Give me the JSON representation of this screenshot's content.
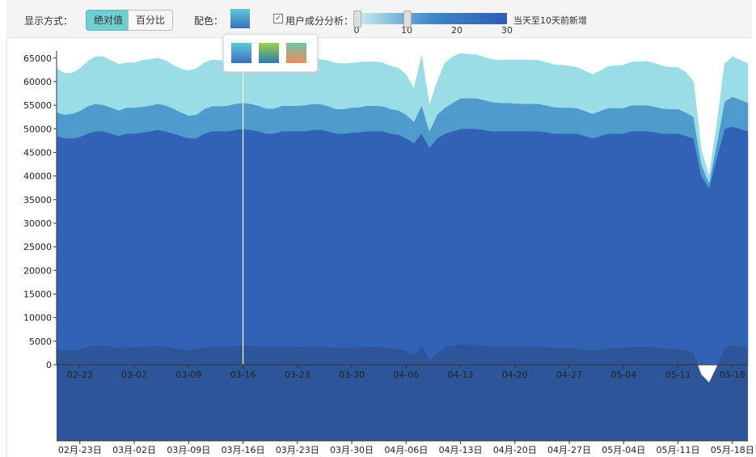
{
  "toolbar": {
    "display_label": "显示方式：",
    "buttons": [
      "绝对值",
      "百分比"
    ],
    "color_label": "配色：",
    "analysis_label": "用户成分分析："
  },
  "slider": {
    "ticks": [
      0,
      10,
      20,
      30
    ],
    "range": [
      0,
      10
    ],
    "label": "当天至10天前新增"
  },
  "chart_data": {
    "type": "stacked-area",
    "categories": [
      null,
      null,
      null,
      "02-23",
      null,
      null,
      null,
      null,
      null,
      null,
      "03-02",
      null,
      null,
      null,
      null,
      null,
      null,
      "03-09",
      null,
      null,
      null,
      null,
      null,
      null,
      "03-16",
      null,
      null,
      null,
      null,
      null,
      null,
      "03-23",
      null,
      null,
      null,
      null,
      null,
      null,
      "03-30",
      null,
      null,
      null,
      null,
      null,
      null,
      "04-06",
      null,
      null,
      null,
      null,
      null,
      null,
      "04-13",
      null,
      null,
      null,
      null,
      null,
      null,
      "04-20",
      null,
      null,
      null,
      null,
      null,
      null,
      "04-27",
      null,
      null,
      null,
      null,
      null,
      null,
      "05-04",
      null,
      null,
      null,
      null,
      null,
      null,
      "05-11",
      null,
      null,
      null,
      null,
      null,
      null,
      "05-18",
      null,
      null
    ],
    "navigator_labels": [
      null,
      null,
      null,
      "02月-23日",
      null,
      null,
      null,
      null,
      null,
      null,
      "03月-02日",
      null,
      null,
      null,
      null,
      null,
      null,
      "03月-09日",
      null,
      null,
      null,
      null,
      null,
      null,
      "03月-16日",
      null,
      null,
      null,
      null,
      null,
      null,
      "03月-23日",
      null,
      null,
      null,
      null,
      null,
      null,
      "03月-30日",
      null,
      null,
      null,
      null,
      null,
      null,
      "04月-06日",
      null,
      null,
      null,
      null,
      null,
      null,
      "04月-13日",
      null,
      null,
      null,
      null,
      null,
      null,
      "04月-20日",
      null,
      null,
      null,
      null,
      null,
      null,
      "04月-27日",
      null,
      null,
      null,
      null,
      null,
      null,
      "05月-04日",
      null,
      null,
      null,
      null,
      null,
      null,
      "05月-11日",
      null,
      null,
      null,
      null,
      null,
      null,
      "05月-18日",
      null,
      null
    ],
    "series": [
      {
        "color": "#3062b6",
        "values": [
          48500,
          48000,
          48000,
          48300,
          49000,
          49500,
          49500,
          49000,
          48500,
          49000,
          49000,
          49200,
          49500,
          49800,
          49500,
          49000,
          48500,
          48000,
          48000,
          49000,
          49500,
          49500,
          49500,
          49800,
          50000,
          49800,
          49500,
          49000,
          49000,
          49500,
          49500,
          49500,
          49500,
          49800,
          49800,
          49500,
          49000,
          49000,
          49200,
          49300,
          49500,
          49500,
          49500,
          49000,
          48800,
          48000,
          47000,
          49000,
          46000,
          48000,
          49000,
          49500,
          50000,
          50000,
          50000,
          49800,
          49500,
          49500,
          49500,
          49500,
          49500,
          49500,
          49500,
          49300,
          49000,
          49000,
          49000,
          49000,
          48500,
          48000,
          48500,
          49000,
          49000,
          49000,
          49500,
          49500,
          49500,
          49300,
          49000,
          49000,
          49000,
          48500,
          48000,
          40000,
          37500,
          44000,
          50000,
          50500,
          50000,
          49500
        ]
      },
      {
        "color": "#4f9bcd",
        "values": [
          5000,
          5000,
          5200,
          5500,
          5800,
          5800,
          5600,
          5500,
          5400,
          5500,
          5500,
          5500,
          5400,
          5500,
          5500,
          5300,
          5000,
          4800,
          5000,
          5200,
          5300,
          5300,
          5400,
          5500,
          5500,
          5500,
          5400,
          5300,
          5300,
          5400,
          5400,
          5400,
          5500,
          5500,
          5400,
          5300,
          5200,
          5200,
          5300,
          5300,
          5400,
          5400,
          5300,
          5200,
          5100,
          5000,
          4500,
          6000,
          3500,
          5000,
          5500,
          6000,
          6500,
          6500,
          6500,
          6300,
          6200,
          6000,
          6000,
          5900,
          5800,
          5800,
          5800,
          5700,
          5600,
          5500,
          5500,
          5400,
          5300,
          5200,
          5300,
          5400,
          5400,
          5400,
          5500,
          5500,
          5500,
          5400,
          5300,
          5200,
          5200,
          5000,
          4500,
          2500,
          1000,
          3000,
          5800,
          6300,
          6200,
          6000
        ]
      },
      {
        "color": "#9adde6",
        "values": [
          9300,
          8800,
          8600,
          9000,
          9500,
          10000,
          10200,
          10000,
          9800,
          9500,
          9500,
          9800,
          9800,
          9700,
          9500,
          9200,
          9200,
          9500,
          9800,
          9800,
          9800,
          9700,
          9500,
          9500,
          9600,
          9800,
          10000,
          10200,
          10000,
          9800,
          9600,
          9500,
          9400,
          9400,
          9500,
          9600,
          9700,
          9600,
          9400,
          9500,
          9300,
          9300,
          9200,
          9100,
          9000,
          8500,
          7000,
          10500,
          5500,
          7000,
          9500,
          9800,
          9500,
          9300,
          9200,
          9100,
          9000,
          9000,
          9100,
          9200,
          9300,
          9300,
          9200,
          9100,
          9000,
          9000,
          8800,
          8600,
          8500,
          8300,
          8500,
          8800,
          9000,
          9100,
          9200,
          9200,
          9300,
          9200,
          9000,
          8800,
          8800,
          8500,
          7500,
          3000,
          1500,
          4000,
          8000,
          8500,
          8400,
          8300
        ]
      }
    ],
    "navigator_color": "#2d5597",
    "ylim": [
      0,
      66500
    ],
    "yticks": [
      0,
      5000,
      10000,
      15000,
      20000,
      25000,
      30000,
      35000,
      40000,
      45000,
      50000,
      55000,
      60000,
      65000
    ]
  }
}
